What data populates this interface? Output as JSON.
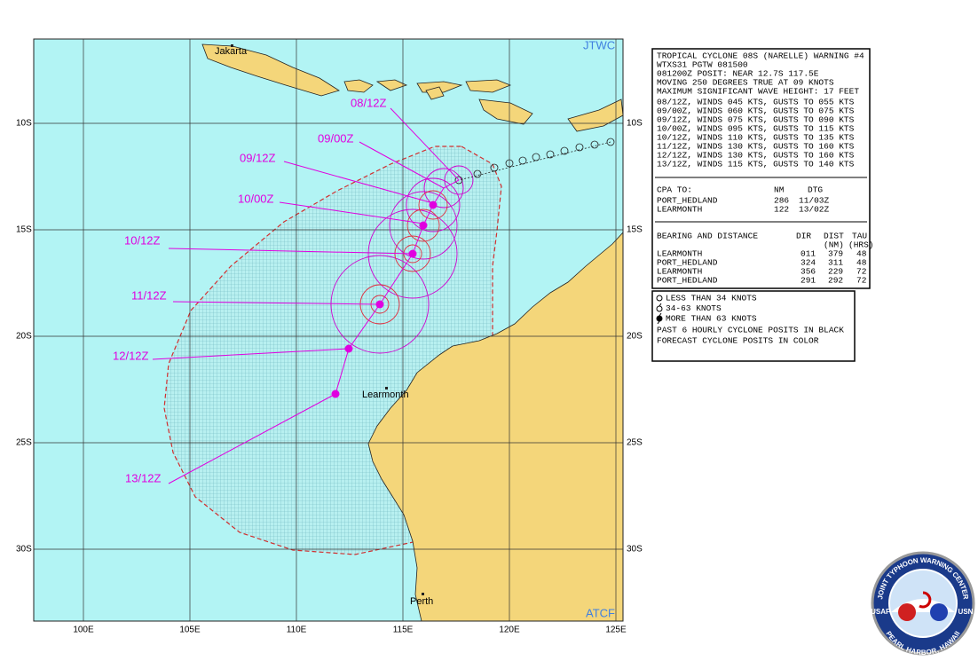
{
  "map_labels": {
    "corner_top": "JTWC",
    "corner_bottom": "ATCF",
    "places": [
      "Jakarta",
      "Learmonth",
      "Perth"
    ]
  },
  "grid_labels": {
    "lat": [
      "10S",
      "15S",
      "20S",
      "25S",
      "30S"
    ],
    "lon": [
      "100E",
      "105E",
      "110E",
      "115E",
      "120E",
      "125E"
    ]
  },
  "forecast_labels": [
    "08/12Z",
    "09/00Z",
    "09/12Z",
    "10/00Z",
    "10/12Z",
    "11/12Z",
    "12/12Z",
    "13/12Z"
  ],
  "warning": {
    "title": "TROPICAL CYCLONE 08S (NARELLE) WARNING #4",
    "lines": [
      "WTXS31 PGTW 081500",
      "081200Z POSIT: NEAR 12.7S 117.5E",
      "MOVING 250 DEGREES TRUE AT 09 KNOTS",
      "MAXIMUM SIGNIFICANT WAVE HEIGHT: 17 FEET"
    ],
    "winds": [
      "08/12Z, WINDS 045 KTS, GUSTS TO 055 KTS",
      "09/00Z, WINDS 060 KTS, GUSTS TO 075 KTS",
      "09/12Z, WINDS 075 KTS, GUSTS TO 090 KTS",
      "10/00Z, WINDS 095 KTS, GUSTS TO 115 KTS",
      "10/12Z, WINDS 110 KTS, GUSTS TO 135 KTS",
      "11/12Z, WINDS 130 KTS, GUSTS TO 160 KTS",
      "12/12Z, WINDS 130 KTS, GUSTS TO 160 KTS",
      "13/12Z, WINDS 115 KTS, GUSTS TO 140 KTS"
    ]
  },
  "cpa": {
    "header": [
      "CPA TO:",
      "NM",
      "DTG"
    ],
    "rows": [
      [
        "PORT_HEDLAND",
        "286",
        "11/03Z"
      ],
      [
        "LEARMONTH",
        "122",
        "13/02Z"
      ]
    ]
  },
  "bearing": {
    "header": [
      "BEARING AND DISTANCE",
      "DIR",
      "DIST",
      "TAU"
    ],
    "subheader": [
      "(NM)",
      "(HRS)"
    ],
    "rows": [
      [
        "LEARMONTH",
        "011",
        "379",
        "48"
      ],
      [
        "PORT_HEDLAND",
        "324",
        "311",
        "48"
      ],
      [
        "LEARMONTH",
        "356",
        "229",
        "72"
      ],
      [
        "PORT_HEDLAND",
        "291",
        "292",
        "72"
      ]
    ]
  },
  "legend": {
    "items": [
      "LESS THAN 34 KNOTS",
      "34-63 KNOTS",
      "MORE THAN 63 KNOTS"
    ],
    "notes": [
      "PAST 6 HOURLY CYCLONE POSITS IN BLACK",
      "FORECAST CYCLONE POSITS IN COLOR"
    ]
  },
  "logo": {
    "ring": "JOINT TYPHOON WARNING CENTER",
    "left": "USAF",
    "right": "USN",
    "bottom": "PEARL HARBOR, HAWAII"
  }
}
